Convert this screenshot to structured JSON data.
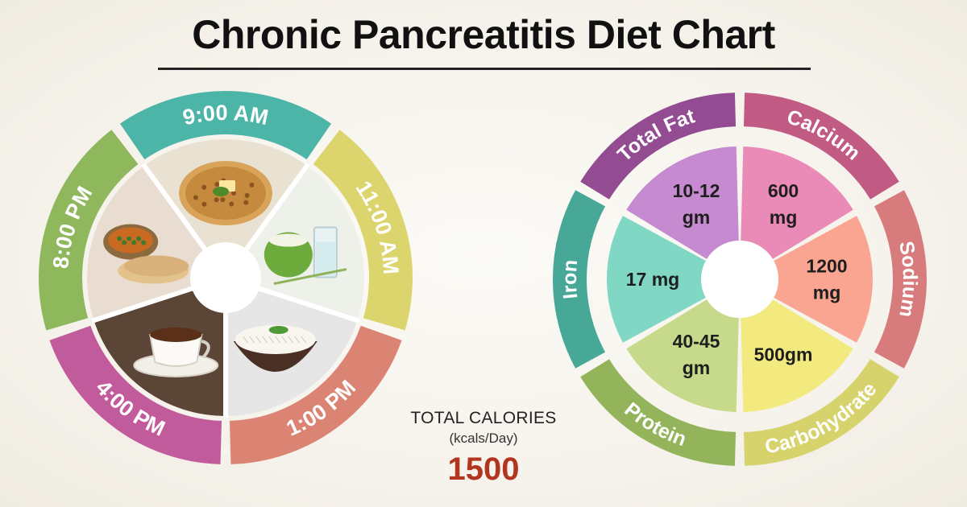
{
  "title": "Chronic Pancreatitis Diet Chart",
  "meal_schedule": [
    {
      "time": "9:00 AM",
      "color": "#4db5a7",
      "food_icon": "paratha-icon"
    },
    {
      "time": "11:00 AM",
      "color": "#dcd56e",
      "food_icon": "coconut-water-icon"
    },
    {
      "time": "1:00 PM",
      "color": "#dc8474",
      "food_icon": "rice-bowl-icon"
    },
    {
      "time": "4:00 PM",
      "color": "#c25b9c",
      "food_icon": "coffee-cup-icon"
    },
    {
      "time": "8:00 PM",
      "color": "#8fb85c",
      "food_icon": "curry-chapati-icon"
    }
  ],
  "nutrients": [
    {
      "name": "Calcium",
      "value": [
        "600",
        "mg"
      ],
      "ring_color": "#c15b84",
      "fill_color": "#ea8ab6"
    },
    {
      "name": "Sodium",
      "value": [
        "1200",
        "mg"
      ],
      "ring_color": "#d87b7c",
      "fill_color": "#f9a591"
    },
    {
      "name": "Carbohydrate",
      "value": [
        "500gm"
      ],
      "ring_color": "#d7d36c",
      "fill_color": "#f3ea7f"
    },
    {
      "name": "Protein",
      "value": [
        "40-45",
        "gm"
      ],
      "ring_color": "#94b45c",
      "fill_color": "#c7d98a"
    },
    {
      "name": "Iron",
      "value": [
        "17 mg"
      ],
      "ring_color": "#47a897",
      "fill_color": "#7fd7c4"
    },
    {
      "name": "Total Fat",
      "value": [
        "10-12",
        "gm"
      ],
      "ring_color": "#934c91",
      "fill_color": "#c68ad0"
    }
  ],
  "total_calories": {
    "label": "TOTAL CALORIES",
    "unit": "(kcals/Day)",
    "value": "1500"
  }
}
